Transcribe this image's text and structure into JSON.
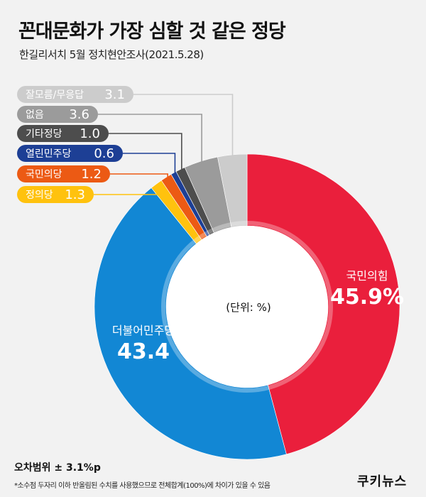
{
  "header": {
    "title": "꼰대문화가 가장 심할 것 같은 정당",
    "subtitle": "한길리서치 5월 정치현안조사(2021.5.28)"
  },
  "chart_data": {
    "type": "pie",
    "unit_label": "(단위: %)",
    "slices": [
      {
        "name": "국민의힘",
        "value": 45.9,
        "display": "45.9%",
        "color": "#ea1f3c"
      },
      {
        "name": "더불어민주당",
        "value": 43.4,
        "display": "43.4",
        "color": "#1287d4"
      },
      {
        "name": "정의당",
        "value": 1.3,
        "display": "1.3",
        "color": "#ffc20e"
      },
      {
        "name": "국민의당",
        "value": 1.2,
        "display": "1.2",
        "color": "#ec5a14"
      },
      {
        "name": "열린민주당",
        "value": 0.6,
        "display": "0.6",
        "color": "#1d3f95"
      },
      {
        "name": "기타정당",
        "value": 1.0,
        "display": "1.0",
        "color": "#4d4d4d"
      },
      {
        "name": "없음",
        "value": 3.6,
        "display": "3.6",
        "color": "#9b9b9b"
      },
      {
        "name": "잘모름/무응답",
        "value": 3.1,
        "display": "3.1",
        "color": "#cccccc"
      }
    ]
  },
  "footer": {
    "margin_of_error": "오차범위 ± 3.1%p",
    "note": "*소수점 두자리 이하 반올림된 수치를 사용했으므로 전체합계(100%)에 차이가 있을 수 있음",
    "brand": "쿠키뉴스"
  }
}
